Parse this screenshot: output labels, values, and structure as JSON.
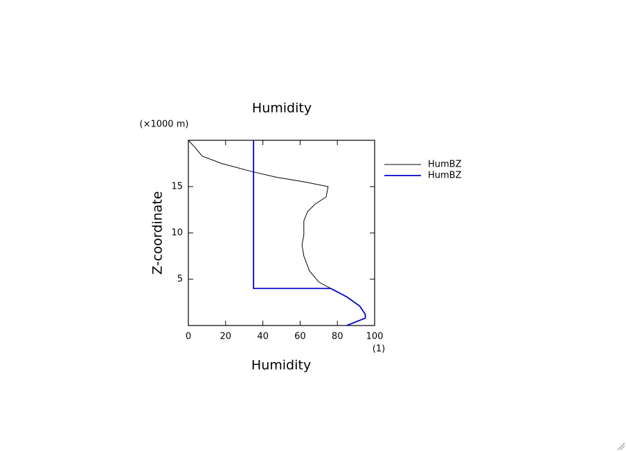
{
  "chart_data": {
    "type": "line",
    "title": "Humidity",
    "x_label": "Humidity",
    "y_label": "Z-coordinate",
    "x_unit": "(1)",
    "y_unit": "(×1000 m)",
    "xlim": [
      0,
      100
    ],
    "ylim": [
      0,
      20
    ],
    "xticks": [
      0,
      20,
      40,
      60,
      80,
      100
    ],
    "yticks": [
      5,
      10,
      15
    ],
    "series": [
      {
        "name": "HumBZ",
        "color": "#000000",
        "x": [
          0,
          3.7,
          7.4,
          17.8,
          34.6,
          47.6,
          62.5,
          75,
          74,
          68,
          64,
          62,
          62,
          61,
          62,
          65,
          70,
          76.5,
          85,
          92,
          95,
          95,
          90,
          85
        ],
        "values": [
          20,
          19.2,
          18.3,
          17.5,
          16.6,
          16.0,
          15.5,
          15,
          13.9,
          13.1,
          12.3,
          11.3,
          9.8,
          8.7,
          7.5,
          5.9,
          4.7,
          4.0,
          3.1,
          2.1,
          1.2,
          0.8,
          0.4,
          0
        ]
      },
      {
        "name": "HumBZ",
        "color": "#0000cc",
        "x": [
          35,
          35,
          76.5,
          85,
          92,
          95,
          95,
          90,
          85
        ],
        "values": [
          20,
          4,
          4.0,
          3.1,
          2.1,
          1.2,
          0.8,
          0.4,
          0
        ]
      }
    ]
  }
}
